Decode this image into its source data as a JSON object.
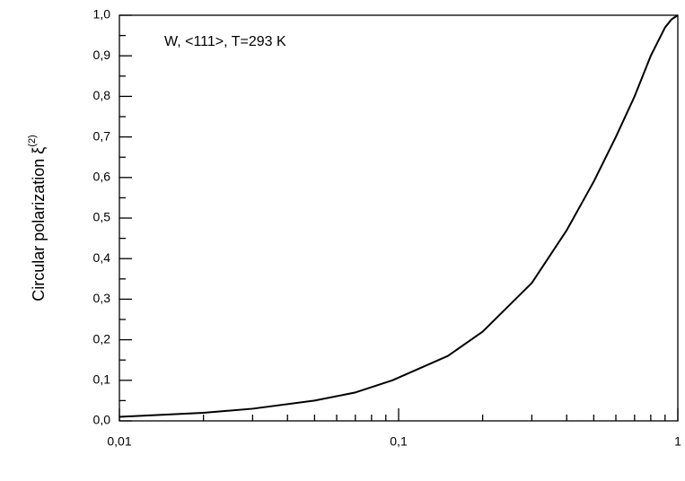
{
  "chart_data": {
    "type": "line",
    "annotation": "W, <111>, T=293 K",
    "ylabel": "Circular polarization ξ",
    "ylabel_superscript": "(2)",
    "x": [
      0.01,
      0.02,
      0.03,
      0.05,
      0.07,
      0.095,
      0.15,
      0.2,
      0.3,
      0.4,
      0.5,
      0.6,
      0.7,
      0.8,
      0.9,
      0.95,
      1.0
    ],
    "series": [
      {
        "color": "#000000",
        "values": [
          0.01,
          0.02,
          0.03,
          0.05,
          0.07,
          0.1,
          0.16,
          0.22,
          0.34,
          0.47,
          0.59,
          0.7,
          0.8,
          0.9,
          0.97,
          0.99,
          1.0
        ]
      }
    ],
    "xscale": "log",
    "xlim": [
      0.01,
      1
    ],
    "xticks": [
      {
        "value": 0.01,
        "label": "0,01"
      },
      {
        "value": 0.1,
        "label": "0,1"
      },
      1
    ],
    "xminorticks": [
      0.02,
      0.03,
      0.04,
      0.05,
      0.06,
      0.07,
      0.08,
      0.09,
      0.2,
      0.3,
      0.4,
      0.5,
      0.6,
      0.7,
      0.8,
      0.9
    ],
    "ylim": [
      0,
      1
    ],
    "yticks": [
      {
        "value": 0,
        "label": "0,0"
      },
      {
        "value": 0.1,
        "label": "0,1"
      },
      {
        "value": 0.2,
        "label": "0,2"
      },
      {
        "value": 0.3,
        "label": "0,3"
      },
      {
        "value": 0.4,
        "label": "0,4"
      },
      {
        "value": 0.5,
        "label": "0,5"
      },
      {
        "value": 0.6,
        "label": "0,6"
      },
      {
        "value": 0.7,
        "label": "0,7"
      },
      {
        "value": 0.8,
        "label": "0,8"
      },
      {
        "value": 0.9,
        "label": "0,9"
      },
      {
        "value": 1,
        "label": "1,0"
      }
    ],
    "yminorticks": [
      0.05,
      0.15,
      0.25,
      0.35,
      0.45,
      0.55,
      0.65,
      0.75,
      0.85,
      0.95
    ]
  }
}
